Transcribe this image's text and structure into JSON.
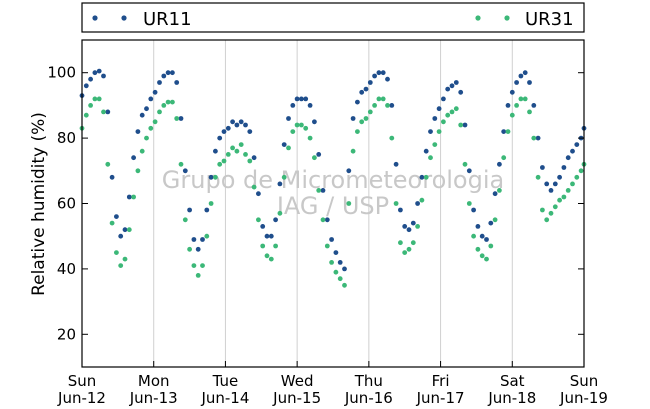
{
  "chart_data": {
    "type": "scatter",
    "title": "",
    "ylabel": "Relative humidity (%)",
    "xlabel": "",
    "ylim": [
      10,
      110
    ],
    "yticks": [
      20,
      40,
      60,
      80,
      100
    ],
    "xlim": [
      0,
      7
    ],
    "grid": "vertical",
    "legend_position": "top",
    "xticks": [
      {
        "x": 0,
        "day": "Sun",
        "date": "Jun-12"
      },
      {
        "x": 1,
        "day": "Mon",
        "date": "Jun-13"
      },
      {
        "x": 2,
        "day": "Tue",
        "date": "Jun-14"
      },
      {
        "x": 3,
        "day": "Wed",
        "date": "Jun-15"
      },
      {
        "x": 4,
        "day": "Thu",
        "date": "Jun-16"
      },
      {
        "x": 5,
        "day": "Fri",
        "date": "Jun-17"
      },
      {
        "x": 6,
        "day": "Sat",
        "date": "Jun-18"
      },
      {
        "x": 7,
        "day": "Sun",
        "date": "Jun-19"
      }
    ],
    "watermark": [
      "Grupo de Micrometeorologia",
      "IAG / USP"
    ],
    "series": [
      {
        "name": "UR11",
        "color": "#1f4e8c",
        "points": [
          [
            0.0,
            93
          ],
          [
            0.06,
            96
          ],
          [
            0.12,
            98
          ],
          [
            0.18,
            100
          ],
          [
            0.24,
            100.5
          ],
          [
            0.3,
            99
          ],
          [
            0.36,
            88
          ],
          [
            0.42,
            68
          ],
          [
            0.48,
            56
          ],
          [
            0.54,
            50
          ],
          [
            0.6,
            52
          ],
          [
            0.66,
            62
          ],
          [
            0.72,
            74
          ],
          [
            0.78,
            82
          ],
          [
            0.84,
            87
          ],
          [
            0.9,
            89
          ],
          [
            0.96,
            92
          ],
          [
            1.02,
            94
          ],
          [
            1.08,
            97
          ],
          [
            1.14,
            99
          ],
          [
            1.2,
            100
          ],
          [
            1.26,
            100
          ],
          [
            1.32,
            97
          ],
          [
            1.38,
            86
          ],
          [
            1.44,
            70
          ],
          [
            1.5,
            58
          ],
          [
            1.56,
            49
          ],
          [
            1.62,
            46
          ],
          [
            1.68,
            49
          ],
          [
            1.74,
            58
          ],
          [
            1.8,
            68
          ],
          [
            1.86,
            76
          ],
          [
            1.92,
            80
          ],
          [
            1.98,
            82
          ],
          [
            2.04,
            83
          ],
          [
            2.1,
            85
          ],
          [
            2.16,
            84
          ],
          [
            2.22,
            85
          ],
          [
            2.28,
            84
          ],
          [
            2.34,
            82
          ],
          [
            2.4,
            74
          ],
          [
            2.46,
            63
          ],
          [
            2.52,
            53
          ],
          [
            2.58,
            50
          ],
          [
            2.64,
            50
          ],
          [
            2.7,
            55
          ],
          [
            2.76,
            66
          ],
          [
            2.82,
            78
          ],
          [
            2.88,
            86
          ],
          [
            2.94,
            90
          ],
          [
            3.0,
            92
          ],
          [
            3.06,
            92
          ],
          [
            3.12,
            92
          ],
          [
            3.18,
            90
          ],
          [
            3.24,
            85
          ],
          [
            3.3,
            75
          ],
          [
            3.36,
            64
          ],
          [
            3.42,
            55
          ],
          [
            3.48,
            49
          ],
          [
            3.54,
            45
          ],
          [
            3.6,
            42
          ],
          [
            3.66,
            40
          ],
          [
            3.72,
            70
          ],
          [
            3.78,
            86
          ],
          [
            3.84,
            91
          ],
          [
            3.9,
            94
          ],
          [
            3.96,
            95
          ],
          [
            4.02,
            97
          ],
          [
            4.08,
            99
          ],
          [
            4.14,
            100
          ],
          [
            4.2,
            100
          ],
          [
            4.26,
            98
          ],
          [
            4.32,
            90
          ],
          [
            4.38,
            72
          ],
          [
            4.44,
            58
          ],
          [
            4.5,
            53
          ],
          [
            4.56,
            52
          ],
          [
            4.62,
            54
          ],
          [
            4.68,
            60
          ],
          [
            4.74,
            68
          ],
          [
            4.8,
            76
          ],
          [
            4.86,
            82
          ],
          [
            4.92,
            86
          ],
          [
            4.98,
            89
          ],
          [
            5.04,
            92
          ],
          [
            5.1,
            95
          ],
          [
            5.16,
            96
          ],
          [
            5.22,
            97
          ],
          [
            5.28,
            94
          ],
          [
            5.34,
            84
          ],
          [
            5.4,
            70
          ],
          [
            5.46,
            58
          ],
          [
            5.52,
            53
          ],
          [
            5.58,
            50
          ],
          [
            5.64,
            49
          ],
          [
            5.7,
            54
          ],
          [
            5.76,
            63
          ],
          [
            5.82,
            72
          ],
          [
            5.88,
            82
          ],
          [
            5.94,
            90
          ],
          [
            6.0,
            94
          ],
          [
            6.06,
            97
          ],
          [
            6.12,
            99
          ],
          [
            6.18,
            100
          ],
          [
            6.24,
            97
          ],
          [
            6.3,
            90
          ],
          [
            6.36,
            80
          ],
          [
            6.42,
            71
          ],
          [
            6.48,
            66
          ],
          [
            6.54,
            64
          ],
          [
            6.6,
            66
          ],
          [
            6.66,
            68
          ],
          [
            6.72,
            71
          ],
          [
            6.78,
            74
          ],
          [
            6.84,
            76
          ],
          [
            6.9,
            78
          ],
          [
            6.96,
            80
          ],
          [
            7.0,
            83
          ]
        ]
      },
      {
        "name": "UR31",
        "color": "#3cb878",
        "points": [
          [
            0.0,
            83
          ],
          [
            0.06,
            87
          ],
          [
            0.12,
            90
          ],
          [
            0.18,
            92
          ],
          [
            0.24,
            92
          ],
          [
            0.3,
            88
          ],
          [
            0.36,
            72
          ],
          [
            0.42,
            54
          ],
          [
            0.48,
            45
          ],
          [
            0.54,
            41
          ],
          [
            0.6,
            43
          ],
          [
            0.66,
            52
          ],
          [
            0.72,
            62
          ],
          [
            0.78,
            70
          ],
          [
            0.84,
            76
          ],
          [
            0.9,
            80
          ],
          [
            0.96,
            83
          ],
          [
            1.02,
            85
          ],
          [
            1.08,
            88
          ],
          [
            1.14,
            90
          ],
          [
            1.2,
            91
          ],
          [
            1.26,
            91
          ],
          [
            1.32,
            86
          ],
          [
            1.38,
            72
          ],
          [
            1.44,
            55
          ],
          [
            1.5,
            46
          ],
          [
            1.56,
            41
          ],
          [
            1.62,
            38
          ],
          [
            1.68,
            41
          ],
          [
            1.74,
            50
          ],
          [
            1.8,
            60
          ],
          [
            1.86,
            68
          ],
          [
            1.92,
            72
          ],
          [
            1.98,
            73
          ],
          [
            2.04,
            75
          ],
          [
            2.1,
            77
          ],
          [
            2.16,
            76
          ],
          [
            2.22,
            78
          ],
          [
            2.28,
            75
          ],
          [
            2.34,
            73
          ],
          [
            2.4,
            65
          ],
          [
            2.46,
            55
          ],
          [
            2.52,
            47
          ],
          [
            2.58,
            44
          ],
          [
            2.64,
            43
          ],
          [
            2.7,
            47
          ],
          [
            2.76,
            57
          ],
          [
            2.82,
            68
          ],
          [
            2.88,
            77
          ],
          [
            2.94,
            82
          ],
          [
            3.0,
            84
          ],
          [
            3.06,
            84
          ],
          [
            3.12,
            83
          ],
          [
            3.18,
            80
          ],
          [
            3.24,
            74
          ],
          [
            3.3,
            64
          ],
          [
            3.36,
            55
          ],
          [
            3.42,
            47
          ],
          [
            3.48,
            42
          ],
          [
            3.54,
            39
          ],
          [
            3.6,
            37
          ],
          [
            3.66,
            35
          ],
          [
            3.72,
            60
          ],
          [
            3.78,
            76
          ],
          [
            3.84,
            82
          ],
          [
            3.9,
            85
          ],
          [
            3.96,
            86
          ],
          [
            4.02,
            88
          ],
          [
            4.08,
            90
          ],
          [
            4.14,
            92
          ],
          [
            4.2,
            92
          ],
          [
            4.26,
            90
          ],
          [
            4.32,
            80
          ],
          [
            4.38,
            60
          ],
          [
            4.44,
            48
          ],
          [
            4.5,
            45
          ],
          [
            4.56,
            46
          ],
          [
            4.62,
            48
          ],
          [
            4.68,
            53
          ],
          [
            4.74,
            61
          ],
          [
            4.8,
            68
          ],
          [
            4.86,
            74
          ],
          [
            4.92,
            78
          ],
          [
            4.98,
            82
          ],
          [
            5.04,
            85
          ],
          [
            5.1,
            87
          ],
          [
            5.16,
            88
          ],
          [
            5.22,
            89
          ],
          [
            5.28,
            84
          ],
          [
            5.34,
            72
          ],
          [
            5.4,
            60
          ],
          [
            5.46,
            50
          ],
          [
            5.52,
            46
          ],
          [
            5.58,
            44
          ],
          [
            5.64,
            43
          ],
          [
            5.7,
            47
          ],
          [
            5.76,
            55
          ],
          [
            5.82,
            64
          ],
          [
            5.88,
            74
          ],
          [
            5.94,
            82
          ],
          [
            6.0,
            87
          ],
          [
            6.06,
            90
          ],
          [
            6.12,
            92
          ],
          [
            6.18,
            92
          ],
          [
            6.24,
            88
          ],
          [
            6.3,
            80
          ],
          [
            6.36,
            68
          ],
          [
            6.42,
            58
          ],
          [
            6.48,
            55
          ],
          [
            6.54,
            57
          ],
          [
            6.6,
            59
          ],
          [
            6.66,
            61
          ],
          [
            6.72,
            62
          ],
          [
            6.78,
            64
          ],
          [
            6.84,
            66
          ],
          [
            6.9,
            68
          ],
          [
            6.96,
            70
          ],
          [
            7.0,
            72
          ]
        ]
      }
    ]
  }
}
